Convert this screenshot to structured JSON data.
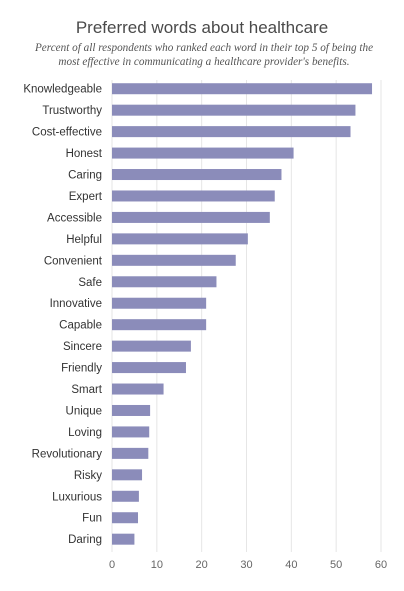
{
  "title": "Preferred words about healthcare",
  "subtitle": "Percent of all respondents who ranked each word in their top 5 of being the most effective in communicating a healthcare provider's benefits.",
  "colors": {
    "bar": "#8b8cba",
    "grid": "#e6e6e6"
  },
  "chart_data": {
    "type": "bar",
    "orientation": "horizontal",
    "title": "Preferred words about healthcare",
    "subtitle": "Percent of all respondents who ranked each word in their top 5 of being the most effective in communicating a healthcare provider's benefits.",
    "categories": [
      "Knowledgeable",
      "Trustworthy",
      "Cost-effective",
      "Honest",
      "Caring",
      "Expert",
      "Accessible",
      "Helpful",
      "Convenient",
      "Safe",
      "Innovative",
      "Capable",
      "Sincere",
      "Friendly",
      "Smart",
      "Unique",
      "Loving",
      "Revolutionary",
      "Risky",
      "Luxurious",
      "Fun",
      "Daring"
    ],
    "values": [
      58,
      54.3,
      53.2,
      40.5,
      37.8,
      36.3,
      35.2,
      30.3,
      27.6,
      23.3,
      21,
      21,
      17.6,
      16.5,
      11.5,
      8.5,
      8.3,
      8.1,
      6.7,
      6,
      5.8,
      5
    ],
    "xlim": [
      0,
      60
    ],
    "xticks": [
      0,
      10,
      20,
      30,
      40,
      50,
      60
    ],
    "xlabel": "",
    "ylabel": "",
    "grid": true,
    "legend": false
  }
}
